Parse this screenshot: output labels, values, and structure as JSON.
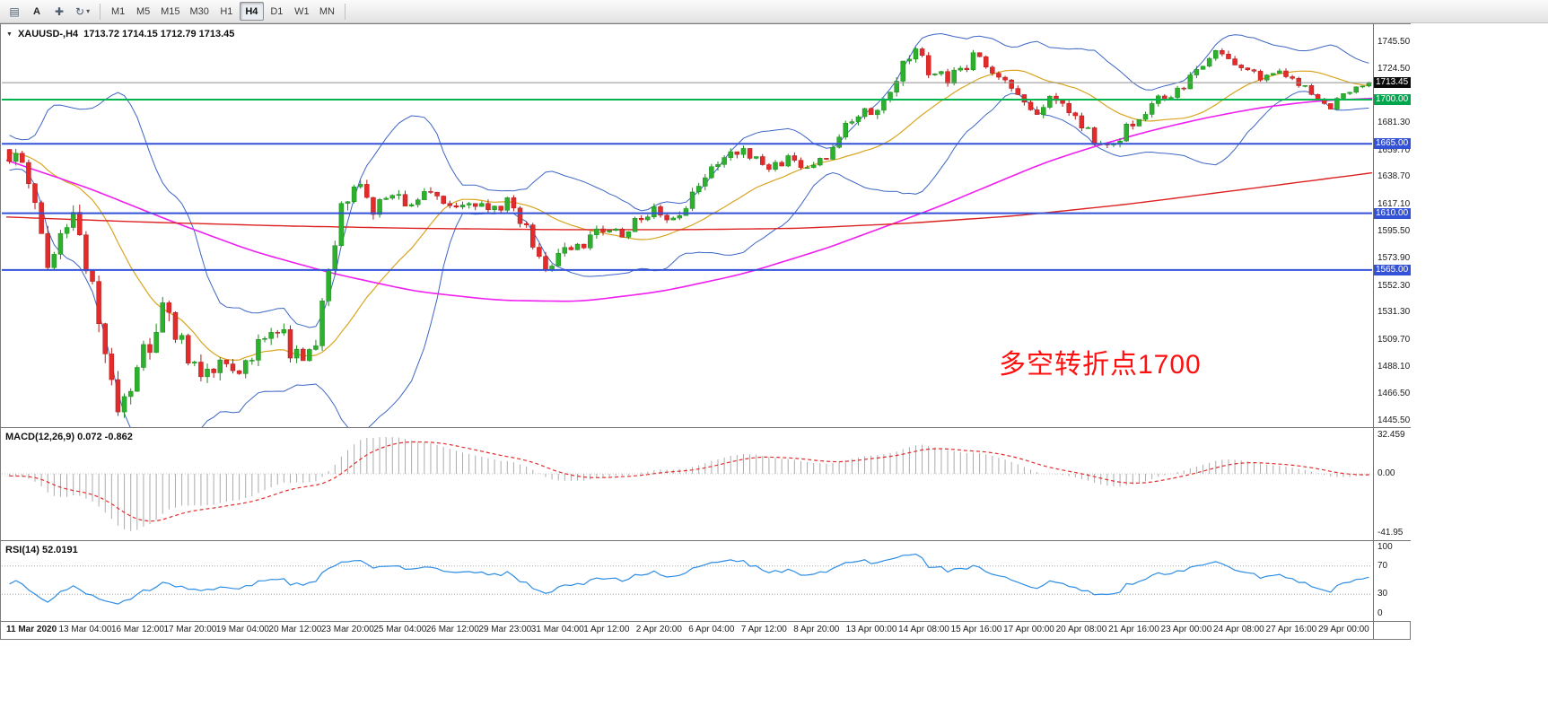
{
  "toolbar": {
    "icons": {
      "charts_grid": "▤",
      "crosshair": "✚",
      "cycle": "↻",
      "caret_down": "▾",
      "symbol_marker": "▼"
    },
    "tool_labels": {
      "text": "A"
    },
    "timeframes": [
      {
        "label": "M1",
        "active": false
      },
      {
        "label": "M5",
        "active": false
      },
      {
        "label": "M15",
        "active": false
      },
      {
        "label": "M30",
        "active": false
      },
      {
        "label": "H1",
        "active": false
      },
      {
        "label": "H4",
        "active": true
      },
      {
        "label": "D1",
        "active": false
      },
      {
        "label": "W1",
        "active": false
      },
      {
        "label": "MN",
        "active": false
      }
    ]
  },
  "chart": {
    "symbol_title": "XAUUSD-,H4",
    "ohlc_text": "1713.72 1714.15 1712.79 1713.45",
    "current_price": "1713.45",
    "annotation": {
      "text": "多空转折点1700",
      "color": "#fe1010"
    },
    "price_axis_labels": [
      "1745.50",
      "1724.50",
      "1681.30",
      "1659.70",
      "1638.70",
      "1617.10",
      "1595.50",
      "1573.90",
      "1552.30",
      "1531.30",
      "1509.70",
      "1488.10",
      "1466.50",
      "1445.50"
    ],
    "badges": [
      {
        "text": "1713.45",
        "price": 1713.45,
        "bg": "#0b0b0b",
        "name": "current-price-badge"
      },
      {
        "text": "1700.00",
        "price": 1700.0,
        "bg": "#00a64d",
        "name": "level-badge-1700"
      },
      {
        "text": "1665.00",
        "price": 1665.0,
        "bg": "#3352d8",
        "name": "level-badge-1665"
      },
      {
        "text": "1610.00",
        "price": 1610.0,
        "bg": "#3352d8",
        "name": "level-badge-1610"
      },
      {
        "text": "1565.00",
        "price": 1565.0,
        "bg": "#3352d8",
        "name": "level-badge-1565"
      }
    ],
    "hlines": [
      {
        "price": 1700.0,
        "color": "#00b44e",
        "width": 2
      },
      {
        "price": 1665.0,
        "color": "#3352d8",
        "width": 2
      },
      {
        "price": 1610.0,
        "color": "#3352d8",
        "width": 2
      },
      {
        "price": 1565.0,
        "color": "#3352d8",
        "width": 2
      }
    ],
    "time_labels": [
      "11 Mar 2020",
      "13 Mar 04:00",
      "16 Mar 12:00",
      "17 Mar 20:00",
      "19 Mar 04:00",
      "20 Mar 12:00",
      "23 Mar 20:00",
      "25 Mar 04:00",
      "26 Mar 12:00",
      "29 Mar 23:00",
      "31 Mar 04:00",
      "1 Apr 12:00",
      "2 Apr 20:00",
      "6 Apr 04:00",
      "7 Apr 12:00",
      "8 Apr 20:00",
      "13 Apr 00:00",
      "14 Apr 08:00",
      "15 Apr 16:00",
      "17 Apr 00:00",
      "20 Apr 08:00",
      "21 Apr 16:00",
      "23 Apr 00:00",
      "24 Apr 08:00",
      "27 Apr 16:00",
      "29 Apr 00:00"
    ]
  },
  "chart_data": {
    "type": "candlestick",
    "symbol": "XAUUSD-",
    "timeframe": "H4",
    "price_range": {
      "min": 1445.5,
      "max": 1745.5
    },
    "visible_bars": 214,
    "warmup_bars": 60,
    "last_candle": {
      "open": 1713.72,
      "high": 1714.15,
      "low": 1712.79,
      "close": 1713.45
    },
    "key_levels": [
      1700,
      1665,
      1610,
      1565
    ],
    "candle_colors": {
      "up": "#2db02d",
      "up_border": "#1d8a1d",
      "down": "#e42b2b",
      "down_border": "#b21919"
    },
    "price_path_anchors": [
      [
        -60,
        1588
      ],
      [
        -48,
        1628
      ],
      [
        -36,
        1668
      ],
      [
        -26,
        1695
      ],
      [
        -18,
        1670
      ],
      [
        -10,
        1648
      ],
      [
        -4,
        1660
      ],
      [
        0,
        1655
      ],
      [
        2,
        1648
      ],
      [
        4,
        1610
      ],
      [
        6,
        1572
      ],
      [
        8,
        1592
      ],
      [
        10,
        1605
      ],
      [
        13,
        1545
      ],
      [
        15,
        1490
      ],
      [
        17,
        1458
      ],
      [
        19,
        1475
      ],
      [
        22,
        1510
      ],
      [
        24,
        1540
      ],
      [
        27,
        1505
      ],
      [
        30,
        1472
      ],
      [
        33,
        1498
      ],
      [
        36,
        1478
      ],
      [
        39,
        1502
      ],
      [
        42,
        1515
      ],
      [
        45,
        1498
      ],
      [
        48,
        1505
      ],
      [
        50,
        1560
      ],
      [
        52,
        1610
      ],
      [
        54,
        1632
      ],
      [
        57,
        1612
      ],
      [
        60,
        1625
      ],
      [
        63,
        1618
      ],
      [
        66,
        1628
      ],
      [
        69,
        1615
      ],
      [
        72,
        1622
      ],
      [
        75,
        1612
      ],
      [
        78,
        1618
      ],
      [
        80,
        1605
      ],
      [
        82,
        1588
      ],
      [
        84,
        1568
      ],
      [
        87,
        1580
      ],
      [
        90,
        1585
      ],
      [
        93,
        1598
      ],
      [
        96,
        1592
      ],
      [
        98,
        1602
      ],
      [
        101,
        1612
      ],
      [
        104,
        1608
      ],
      [
        107,
        1622
      ],
      [
        110,
        1650
      ],
      [
        113,
        1662
      ],
      [
        116,
        1655
      ],
      [
        119,
        1648
      ],
      [
        122,
        1652
      ],
      [
        125,
        1645
      ],
      [
        128,
        1655
      ],
      [
        131,
        1678
      ],
      [
        134,
        1690
      ],
      [
        137,
        1700
      ],
      [
        140,
        1728
      ],
      [
        142,
        1742
      ],
      [
        144,
        1722
      ],
      [
        147,
        1716
      ],
      [
        150,
        1728
      ],
      [
        152,
        1738
      ],
      [
        154,
        1722
      ],
      [
        157,
        1712
      ],
      [
        160,
        1690
      ],
      [
        163,
        1698
      ],
      [
        166,
        1692
      ],
      [
        169,
        1675
      ],
      [
        171,
        1660
      ],
      [
        174,
        1672
      ],
      [
        177,
        1688
      ],
      [
        180,
        1700
      ],
      [
        183,
        1708
      ],
      [
        186,
        1722
      ],
      [
        188,
        1735
      ],
      [
        190,
        1738
      ],
      [
        193,
        1726
      ],
      [
        196,
        1718
      ],
      [
        199,
        1722
      ],
      [
        202,
        1712
      ],
      [
        205,
        1702
      ],
      [
        207,
        1694
      ],
      [
        209,
        1705
      ],
      [
        211,
        1710
      ],
      [
        213,
        1713.45
      ]
    ],
    "volatility_anchors": [
      [
        -60,
        5
      ],
      [
        0,
        6
      ],
      [
        4,
        10
      ],
      [
        10,
        11
      ],
      [
        14,
        15
      ],
      [
        20,
        13
      ],
      [
        30,
        11
      ],
      [
        40,
        10
      ],
      [
        48,
        9
      ],
      [
        52,
        10
      ],
      [
        58,
        7
      ],
      [
        70,
        5
      ],
      [
        80,
        6
      ],
      [
        86,
        7
      ],
      [
        95,
        5
      ],
      [
        105,
        6
      ],
      [
        112,
        6
      ],
      [
        120,
        4
      ],
      [
        131,
        5
      ],
      [
        140,
        7
      ],
      [
        146,
        5
      ],
      [
        152,
        5
      ],
      [
        160,
        5
      ],
      [
        170,
        6
      ],
      [
        178,
        5
      ],
      [
        186,
        5
      ],
      [
        195,
        4
      ],
      [
        205,
        3
      ],
      [
        213,
        1.5
      ]
    ],
    "overlays": {
      "bollinger": {
        "period": 20,
        "deviation": 2.0,
        "band_color": "#3e66c4",
        "mid_color": "#d9a520"
      },
      "ma_magenta": {
        "color": "#ef1fef",
        "points": [
          [
            0,
            1652
          ],
          [
            0.06,
            1630
          ],
          [
            0.12,
            1604
          ],
          [
            0.18,
            1580
          ],
          [
            0.24,
            1562
          ],
          [
            0.3,
            1548
          ],
          [
            0.36,
            1541
          ],
          [
            0.42,
            1540
          ],
          [
            0.48,
            1548
          ],
          [
            0.54,
            1562
          ],
          [
            0.6,
            1582
          ],
          [
            0.64,
            1598
          ],
          [
            0.68,
            1614
          ],
          [
            0.72,
            1632
          ],
          [
            0.76,
            1650
          ],
          [
            0.8,
            1664
          ],
          [
            0.84,
            1676
          ],
          [
            0.88,
            1686
          ],
          [
            0.92,
            1694
          ],
          [
            0.96,
            1699
          ],
          [
            1,
            1701
          ]
        ]
      },
      "ma_red": {
        "color": "#dd2222",
        "points": [
          [
            0,
            1607
          ],
          [
            0.1,
            1603
          ],
          [
            0.2,
            1600
          ],
          [
            0.3,
            1598
          ],
          [
            0.4,
            1597
          ],
          [
            0.5,
            1597
          ],
          [
            0.58,
            1598
          ],
          [
            0.66,
            1602
          ],
          [
            0.74,
            1608
          ],
          [
            0.82,
            1617
          ],
          [
            0.9,
            1628
          ],
          [
            1,
            1642
          ]
        ]
      }
    }
  },
  "macd": {
    "label": "MACD(12,26,9) 0.072 -0.862",
    "params": {
      "fast": 12,
      "slow": 26,
      "signal": 9
    },
    "values": {
      "main": 0.072,
      "signal": -0.862
    },
    "scale_labels": [
      "32.459",
      "0.00",
      "-41.95"
    ],
    "histogram_color": "#ababab",
    "signal_color": "#e02e2e"
  },
  "rsi": {
    "label": "RSI(14) 52.0191",
    "period": 14,
    "value": 52.0191,
    "scale_labels": [
      "100",
      "70",
      "30",
      "0"
    ],
    "levels": [
      70,
      30
    ],
    "line_color": "#2d8de4"
  }
}
